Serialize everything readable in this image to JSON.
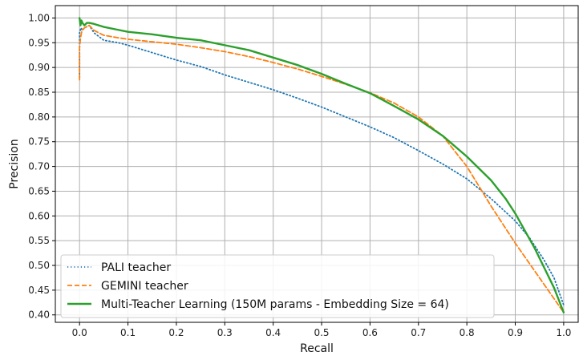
{
  "chart_data": {
    "type": "line",
    "xlabel": "Recall",
    "ylabel": "Precision",
    "xlim": [
      -0.05,
      1.03
    ],
    "ylim": [
      0.385,
      1.025
    ],
    "xticks": [
      0.0,
      0.1,
      0.2,
      0.3,
      0.4,
      0.5,
      0.6,
      0.7,
      0.8,
      0.9,
      1.0
    ],
    "xtick_labels": [
      "0.0",
      "0.1",
      "0.2",
      "0.3",
      "0.4",
      "0.5",
      "0.6",
      "0.7",
      "0.8",
      "0.9",
      "1.0"
    ],
    "yticks": [
      0.4,
      0.45,
      0.5,
      0.55,
      0.6,
      0.65,
      0.7,
      0.75,
      0.8,
      0.85,
      0.9,
      0.95,
      1.0
    ],
    "ytick_labels": [
      "0.40",
      "0.45",
      "0.50",
      "0.55",
      "0.60",
      "0.65",
      "0.70",
      "0.75",
      "0.80",
      "0.85",
      "0.90",
      "0.95",
      "1.00"
    ],
    "grid": true,
    "legend_position": "lower-left",
    "series": [
      {
        "name": "PALI teacher",
        "color": "#1f77b4",
        "style": "dotted",
        "x": [
          0.0,
          0.0,
          0.003,
          0.006,
          0.01,
          0.02,
          0.03,
          0.05,
          0.08,
          0.1,
          0.15,
          0.2,
          0.25,
          0.3,
          0.35,
          0.4,
          0.45,
          0.5,
          0.55,
          0.6,
          0.65,
          0.7,
          0.75,
          0.8,
          0.85,
          0.9,
          0.93,
          0.96,
          0.98,
          1.0
        ],
        "y": [
          0.88,
          0.97,
          0.98,
          0.975,
          0.98,
          0.985,
          0.97,
          0.955,
          0.95,
          0.945,
          0.93,
          0.915,
          0.902,
          0.885,
          0.87,
          0.855,
          0.838,
          0.82,
          0.8,
          0.78,
          0.758,
          0.732,
          0.705,
          0.675,
          0.635,
          0.59,
          0.555,
          0.51,
          0.475,
          0.42
        ]
      },
      {
        "name": "GEMINI teacher",
        "color": "#ff7f0e",
        "style": "dashed",
        "x": [
          0.0,
          0.0,
          0.002,
          0.005,
          0.01,
          0.02,
          0.03,
          0.05,
          0.08,
          0.1,
          0.15,
          0.2,
          0.25,
          0.3,
          0.35,
          0.4,
          0.45,
          0.5,
          0.55,
          0.6,
          0.65,
          0.7,
          0.75,
          0.8,
          0.85,
          0.9,
          0.95,
          1.0
        ],
        "y": [
          0.875,
          0.94,
          0.96,
          0.975,
          0.98,
          0.985,
          0.975,
          0.965,
          0.96,
          0.957,
          0.952,
          0.947,
          0.94,
          0.932,
          0.922,
          0.91,
          0.897,
          0.882,
          0.866,
          0.849,
          0.828,
          0.8,
          0.762,
          0.7,
          0.62,
          0.545,
          0.475,
          0.405
        ]
      },
      {
        "name": "Multi-Teacher Learning (150M params - Embedding Size = 64)",
        "color": "#2ca02c",
        "style": "solid",
        "x": [
          0.0,
          0.002,
          0.004,
          0.006,
          0.01,
          0.015,
          0.02,
          0.03,
          0.05,
          0.08,
          0.1,
          0.15,
          0.2,
          0.25,
          0.3,
          0.35,
          0.4,
          0.45,
          0.5,
          0.55,
          0.6,
          0.65,
          0.7,
          0.75,
          0.8,
          0.85,
          0.88,
          0.9,
          0.92,
          0.94,
          0.96,
          0.98,
          0.99,
          1.0
        ],
        "y": [
          1.0,
          0.985,
          0.995,
          0.99,
          0.985,
          0.99,
          0.99,
          0.988,
          0.982,
          0.976,
          0.972,
          0.967,
          0.96,
          0.955,
          0.945,
          0.935,
          0.92,
          0.905,
          0.887,
          0.867,
          0.848,
          0.822,
          0.795,
          0.762,
          0.72,
          0.672,
          0.635,
          0.605,
          0.57,
          0.535,
          0.495,
          0.455,
          0.43,
          0.405
        ]
      }
    ]
  }
}
